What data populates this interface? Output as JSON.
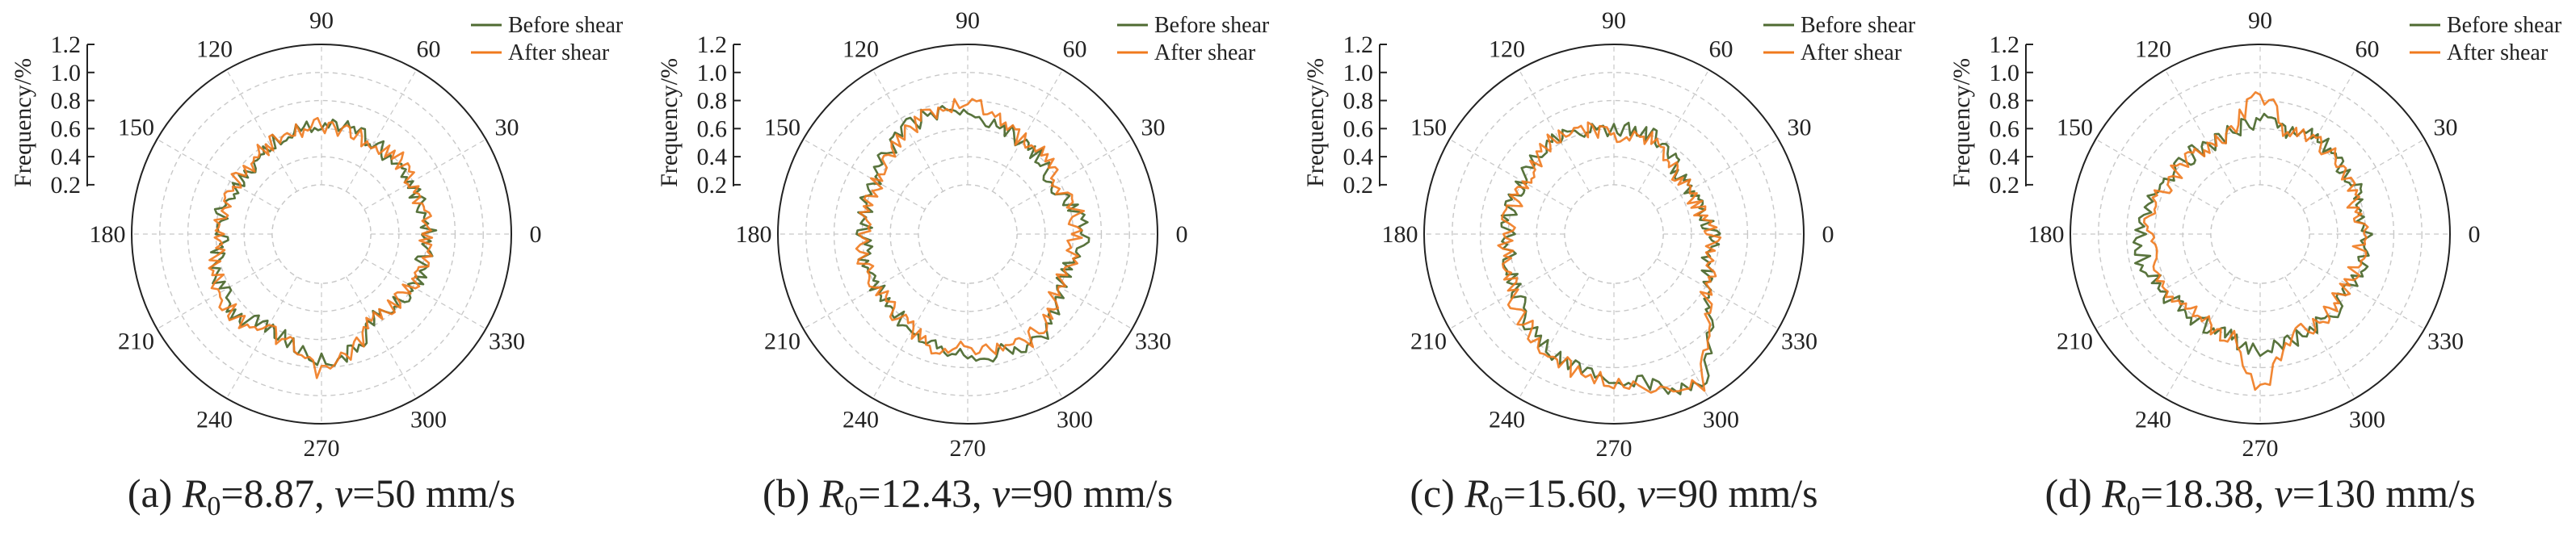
{
  "figure": {
    "colors": {
      "before": "#4f6b32",
      "after": "#f07a1e",
      "grid": "#c8c8c8",
      "axis": "#222222"
    }
  },
  "chart_data": [
    {
      "type": "polar-line",
      "caption": {
        "label": "(a)",
        "var": "R",
        "sub": "0",
        "r_value": "=8.87, ",
        "v_label": "v",
        "v_value": "=50 mm/s"
      },
      "radial_axis_label": "Frequency/%",
      "radial_ticks": [
        "0.2",
        "0.4",
        "0.6",
        "0.8",
        "1.0",
        "1.2"
      ],
      "rlim": [
        0.2,
        1.2
      ],
      "angle_ticks": [
        "0",
        "30",
        "60",
        "90",
        "120",
        "150",
        "180",
        "210",
        "240",
        "270",
        "300",
        "330"
      ],
      "legend": [
        "Before shear",
        "After shear"
      ],
      "grid": true,
      "series": [
        {
          "name": "Before shear",
          "theta": [
            0,
            15,
            30,
            45,
            60,
            75,
            90,
            105,
            120,
            135,
            150,
            165,
            180,
            195,
            210,
            225,
            240,
            255,
            270,
            285,
            300,
            315,
            330,
            345
          ],
          "r": [
            0.62,
            0.58,
            0.55,
            0.6,
            0.58,
            0.62,
            0.64,
            0.6,
            0.6,
            0.55,
            0.55,
            0.58,
            0.55,
            0.62,
            0.66,
            0.68,
            0.6,
            0.66,
            0.75,
            0.72,
            0.55,
            0.58,
            0.6,
            0.6
          ]
        },
        {
          "name": "After shear",
          "theta": [
            0,
            15,
            30,
            45,
            60,
            75,
            90,
            105,
            120,
            135,
            150,
            165,
            180,
            195,
            210,
            225,
            240,
            255,
            270,
            285,
            300,
            315,
            330,
            345
          ],
          "r": [
            0.6,
            0.6,
            0.57,
            0.62,
            0.57,
            0.6,
            0.62,
            0.6,
            0.58,
            0.56,
            0.56,
            0.57,
            0.56,
            0.63,
            0.68,
            0.7,
            0.62,
            0.68,
            0.84,
            0.7,
            0.56,
            0.56,
            0.58,
            0.62
          ]
        }
      ]
    },
    {
      "type": "polar-line",
      "caption": {
        "label": "(b)",
        "var": "R",
        "sub": "0",
        "r_value": "=12.43, ",
        "v_label": "v",
        "v_value": "=90 mm/s"
      },
      "radial_axis_label": "Frequency/%",
      "radial_ticks": [
        "0.2",
        "0.4",
        "0.6",
        "0.8",
        "1.0",
        "1.2"
      ],
      "rlim": [
        0.2,
        1.2
      ],
      "angle_ticks": [
        "0",
        "30",
        "60",
        "90",
        "120",
        "150",
        "180",
        "210",
        "240",
        "270",
        "300",
        "330"
      ],
      "legend": [
        "Before shear",
        "After shear"
      ],
      "grid": true,
      "series": [
        {
          "name": "Before shear",
          "theta": [
            0,
            15,
            30,
            45,
            60,
            75,
            90,
            105,
            120,
            135,
            150,
            165,
            180,
            195,
            210,
            225,
            240,
            255,
            270,
            285,
            300,
            315,
            330,
            345
          ],
          "r": [
            0.68,
            0.62,
            0.55,
            0.6,
            0.6,
            0.66,
            0.72,
            0.74,
            0.72,
            0.66,
            0.62,
            0.6,
            0.58,
            0.6,
            0.6,
            0.62,
            0.62,
            0.66,
            0.7,
            0.72,
            0.76,
            0.7,
            0.6,
            0.62
          ]
        },
        {
          "name": "After shear",
          "theta": [
            0,
            15,
            30,
            45,
            60,
            75,
            90,
            105,
            120,
            135,
            150,
            165,
            180,
            195,
            210,
            225,
            240,
            255,
            270,
            285,
            300,
            315,
            330,
            345
          ],
          "r": [
            0.62,
            0.64,
            0.57,
            0.62,
            0.62,
            0.7,
            0.8,
            0.76,
            0.7,
            0.64,
            0.6,
            0.58,
            0.6,
            0.62,
            0.58,
            0.6,
            0.64,
            0.7,
            0.66,
            0.68,
            0.72,
            0.66,
            0.58,
            0.6
          ]
        }
      ]
    },
    {
      "type": "polar-line",
      "caption": {
        "label": "(c)",
        "var": "R",
        "sub": "0",
        "r_value": "=15.60, ",
        "v_label": "v",
        "v_value": "=90 mm/s"
      },
      "radial_axis_label": "Frequency/%",
      "radial_ticks": [
        "0.2",
        "0.4",
        "0.6",
        "0.8",
        "1.0",
        "1.2"
      ],
      "rlim": [
        0.2,
        1.2
      ],
      "angle_ticks": [
        "0",
        "30",
        "60",
        "90",
        "120",
        "150",
        "180",
        "210",
        "240",
        "270",
        "300",
        "330"
      ],
      "legend": [
        "Before shear",
        "After shear"
      ],
      "grid": true,
      "series": [
        {
          "name": "Before shear",
          "theta": [
            0,
            15,
            30,
            45,
            60,
            75,
            90,
            105,
            120,
            135,
            150,
            165,
            180,
            195,
            210,
            225,
            240,
            255,
            270,
            285,
            300,
            315,
            330,
            345
          ],
          "r": [
            0.55,
            0.5,
            0.45,
            0.48,
            0.58,
            0.6,
            0.58,
            0.6,
            0.65,
            0.62,
            0.62,
            0.6,
            0.6,
            0.62,
            0.66,
            0.72,
            0.8,
            0.85,
            0.88,
            0.95,
            1.12,
            0.8,
            0.6,
            0.55
          ]
        },
        {
          "name": "After shear",
          "theta": [
            0,
            15,
            30,
            45,
            60,
            75,
            90,
            105,
            120,
            135,
            150,
            165,
            180,
            195,
            210,
            225,
            240,
            255,
            270,
            285,
            300,
            315,
            330,
            345
          ],
          "r": [
            0.55,
            0.48,
            0.45,
            0.47,
            0.56,
            0.58,
            0.56,
            0.62,
            0.66,
            0.6,
            0.6,
            0.58,
            0.62,
            0.64,
            0.68,
            0.74,
            0.82,
            0.86,
            0.9,
            0.98,
            1.08,
            0.78,
            0.6,
            0.57
          ]
        }
      ]
    },
    {
      "type": "polar-line",
      "caption": {
        "label": "(d)",
        "var": "R",
        "sub": "0",
        "r_value": "=18.38, ",
        "v_label": "v",
        "v_value": "=130 mm/s"
      },
      "radial_axis_label": "Frequency/%",
      "radial_ticks": [
        "0.2",
        "0.4",
        "0.6",
        "0.8",
        "1.0",
        "1.2"
      ],
      "rlim": [
        0.2,
        1.2
      ],
      "angle_ticks": [
        "0",
        "30",
        "60",
        "90",
        "120",
        "150",
        "180",
        "210",
        "240",
        "270",
        "300",
        "330"
      ],
      "legend": [
        "Before shear",
        "After shear"
      ],
      "grid": true,
      "series": [
        {
          "name": "Before shear",
          "theta": [
            0,
            15,
            30,
            45,
            60,
            75,
            90,
            105,
            120,
            135,
            150,
            165,
            180,
            195,
            210,
            225,
            240,
            255,
            270,
            285,
            300,
            315,
            330,
            345
          ],
          "r": [
            0.6,
            0.58,
            0.6,
            0.62,
            0.64,
            0.6,
            0.66,
            0.6,
            0.58,
            0.6,
            0.62,
            0.66,
            0.72,
            0.7,
            0.64,
            0.62,
            0.6,
            0.62,
            0.7,
            0.64,
            0.62,
            0.6,
            0.6,
            0.62
          ]
        },
        {
          "name": "After shear",
          "theta": [
            0,
            15,
            30,
            45,
            60,
            75,
            90,
            105,
            120,
            135,
            150,
            165,
            180,
            195,
            210,
            225,
            240,
            255,
            270,
            285,
            300,
            315,
            330,
            345
          ],
          "r": [
            0.56,
            0.55,
            0.58,
            0.6,
            0.62,
            0.58,
            0.86,
            0.6,
            0.56,
            0.58,
            0.6,
            0.62,
            0.66,
            0.64,
            0.6,
            0.6,
            0.58,
            0.62,
            0.95,
            0.62,
            0.6,
            0.58,
            0.56,
            0.58
          ]
        }
      ]
    }
  ]
}
